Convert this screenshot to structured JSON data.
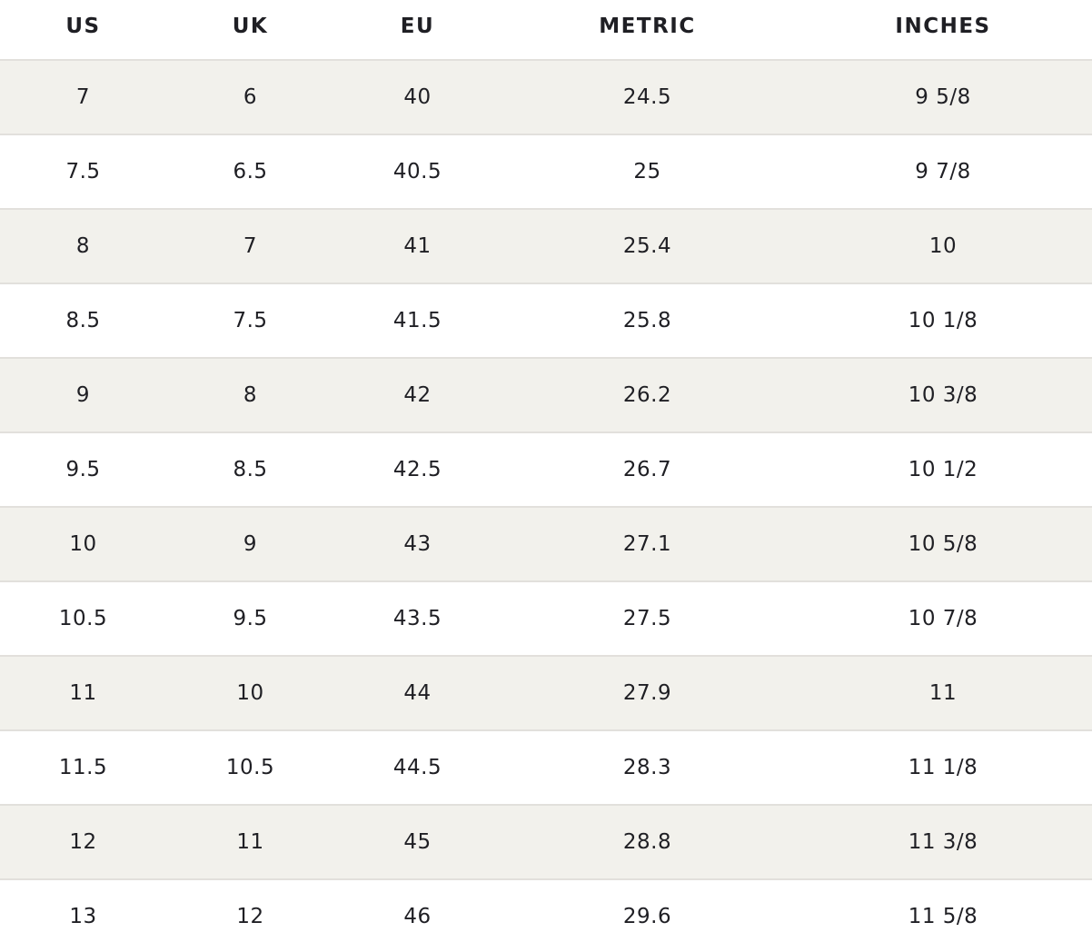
{
  "size_chart": {
    "headers": [
      "US",
      "UK",
      "EU",
      "METRIC",
      "INCHES"
    ],
    "rows": [
      [
        "7",
        "6",
        "40",
        "24.5",
        "9 5/8"
      ],
      [
        "7.5",
        "6.5",
        "40.5",
        "25",
        "9 7/8"
      ],
      [
        "8",
        "7",
        "41",
        "25.4",
        "10"
      ],
      [
        "8.5",
        "7.5",
        "41.5",
        "25.8",
        "10 1/8"
      ],
      [
        "9",
        "8",
        "42",
        "26.2",
        "10 3/8"
      ],
      [
        "9.5",
        "8.5",
        "42.5",
        "26.7",
        "10 1/2"
      ],
      [
        "10",
        "9",
        "43",
        "27.1",
        "10 5/8"
      ],
      [
        "10.5",
        "9.5",
        "43.5",
        "27.5",
        "10 7/8"
      ],
      [
        "11",
        "10",
        "44",
        "27.9",
        "11"
      ],
      [
        "11.5",
        "10.5",
        "44.5",
        "28.3",
        "11 1/8"
      ],
      [
        "12",
        "11",
        "45",
        "28.8",
        "11 3/8"
      ],
      [
        "13",
        "12",
        "46",
        "29.6",
        "11 5/8"
      ]
    ]
  },
  "colors": {
    "text": "#1f1f24",
    "shaded_row": "#f2f1ec",
    "divider": "#e2e0dc"
  }
}
